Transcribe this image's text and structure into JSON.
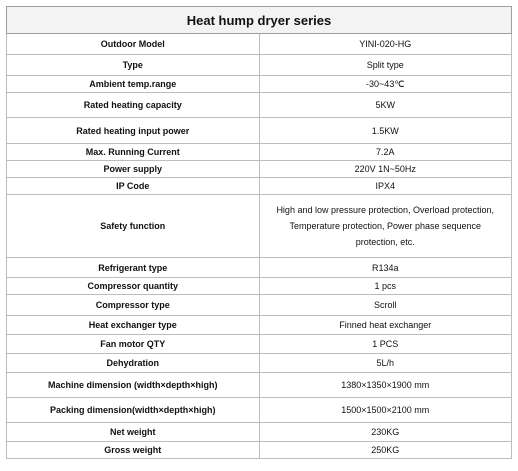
{
  "title": "Heat hump dryer series",
  "rows": [
    {
      "label": "Outdoor Model",
      "value": "YINI-020-HG"
    },
    {
      "label": "Type",
      "value": "Split type"
    },
    {
      "label": "Ambient temp.range",
      "value": "-30~43℃"
    },
    {
      "label": "Rated heating capacity",
      "value": "5KW"
    },
    {
      "label": "Rated heating input power",
      "value": "1.5KW"
    },
    {
      "label": "Max. Running Current",
      "value": "7.2A"
    },
    {
      "label": "Power supply",
      "value": "220V 1N~50Hz"
    },
    {
      "label": "IP Code",
      "value": "IPX4"
    },
    {
      "label": "Safety function",
      "value": "High and low pressure protection, Overload protection, Temperature protection, Power phase sequence protection, etc."
    },
    {
      "label": "Refrigerant type",
      "value": "R134a"
    },
    {
      "label": "Compressor quantity",
      "value": "1 pcs"
    },
    {
      "label": "Compressor type",
      "value": "Scroll"
    },
    {
      "label": "Heat exchanger type",
      "value": "Finned heat exchanger"
    },
    {
      "label": "Fan motor QTY",
      "value": "1 PCS"
    },
    {
      "label": "Dehydration",
      "value": "5L/h"
    },
    {
      "label": "Machine dimension (width×depth×high)",
      "value": "1380×1350×1900 mm"
    },
    {
      "label": "Packing dimension(width×depth×high)",
      "value": "1500×1500×2100 mm"
    },
    {
      "label": "Net weight",
      "value": "230KG"
    },
    {
      "label": "Gross weight",
      "value": "250KG"
    }
  ]
}
